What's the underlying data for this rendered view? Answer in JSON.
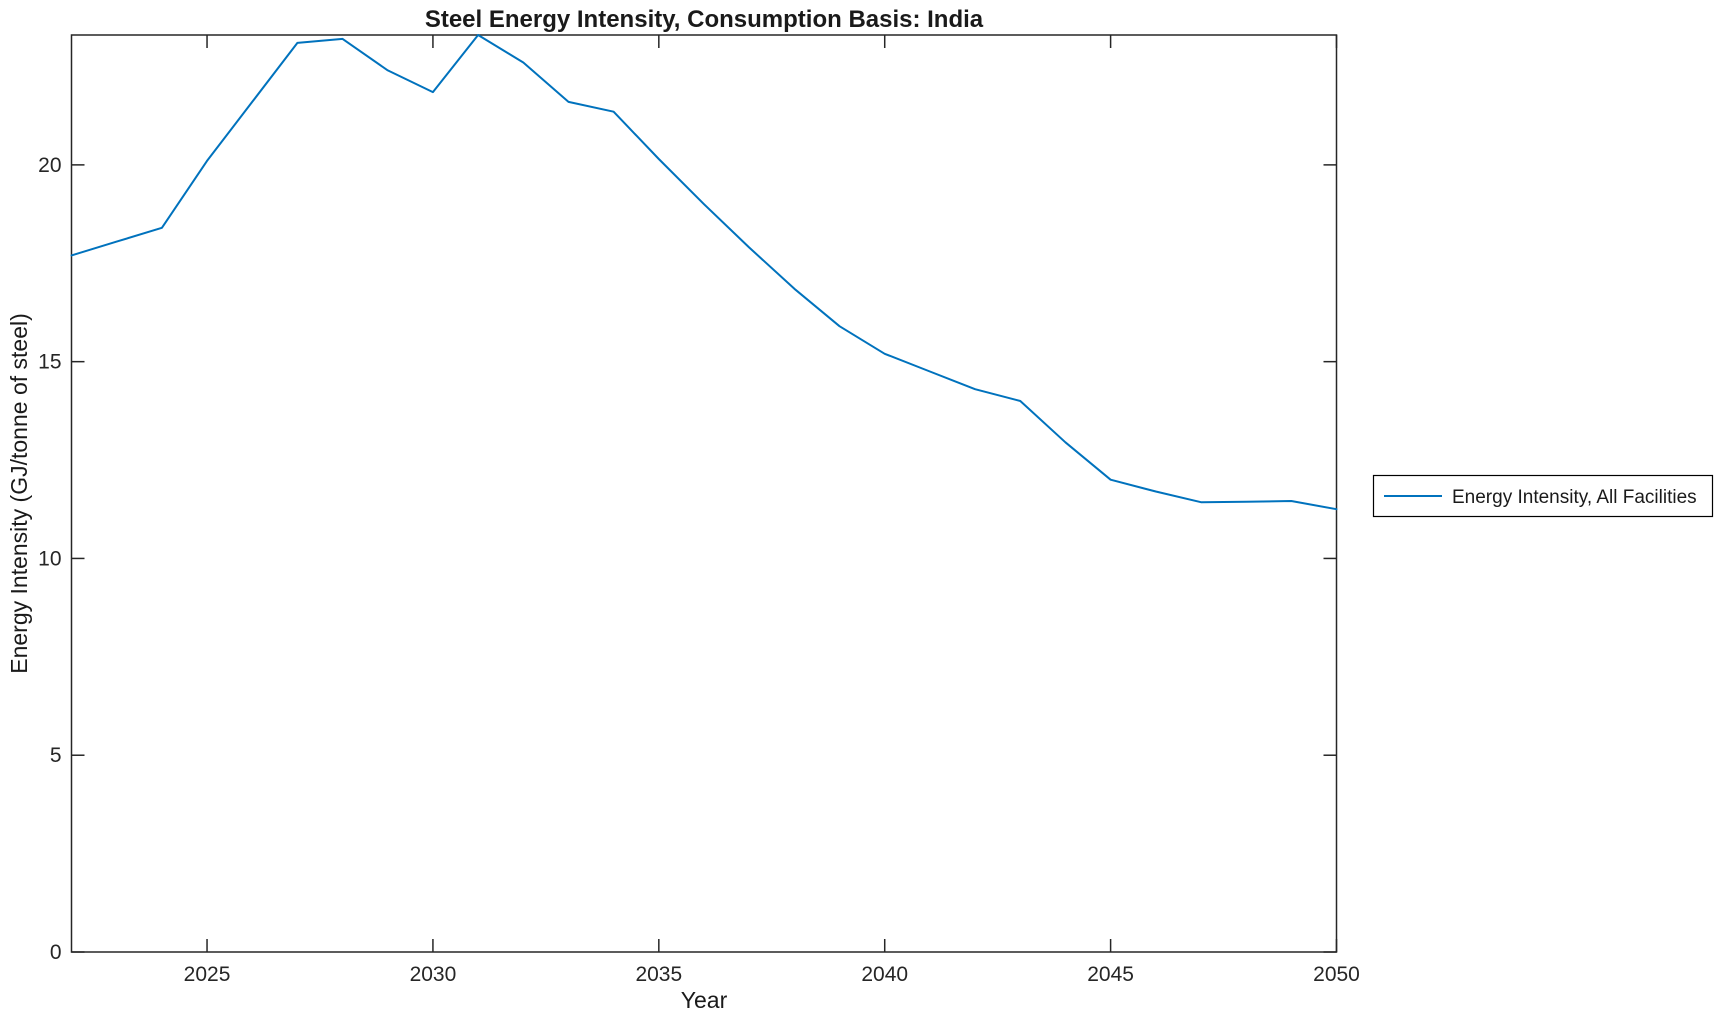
{
  "figure": {
    "background_color": "#ffffff"
  },
  "chart_data": {
    "type": "line",
    "title": "Steel Energy Intensity, Consumption Basis: India",
    "xlabel": "Year",
    "ylabel": "Energy Intensity (GJ/tonne of steel)",
    "xlim": [
      2022,
      2050
    ],
    "ylim": [
      0,
      23.3
    ],
    "xticks": [
      2025,
      2030,
      2035,
      2040,
      2045,
      2050
    ],
    "yticks": [
      0,
      5,
      10,
      15,
      20
    ],
    "grid": false,
    "box": true,
    "axis_color": "#262626",
    "legend": {
      "position": "right-outside",
      "border_color": "#000000",
      "entries": [
        {
          "label": "Energy Intensity, All Facilities",
          "color": "#0072BD"
        }
      ]
    },
    "series": [
      {
        "name": "Energy Intensity, All Facilities",
        "color": "#0072BD",
        "x": [
          2022,
          2023,
          2024,
          2025,
          2026,
          2027,
          2028,
          2029,
          2030,
          2031,
          2032,
          2033,
          2034,
          2035,
          2036,
          2037,
          2038,
          2039,
          2040,
          2041,
          2042,
          2043,
          2044,
          2045,
          2046,
          2047,
          2048,
          2049,
          2050
        ],
        "y": [
          17.7,
          18.05,
          18.4,
          20.1,
          21.6,
          23.1,
          23.2,
          22.4,
          21.85,
          23.3,
          22.6,
          21.6,
          21.35,
          20.15,
          19.0,
          17.9,
          16.85,
          15.9,
          15.2,
          14.75,
          14.3,
          14.0,
          12.95,
          12.0,
          11.7,
          11.43,
          11.44,
          11.46,
          11.25
        ]
      }
    ]
  }
}
